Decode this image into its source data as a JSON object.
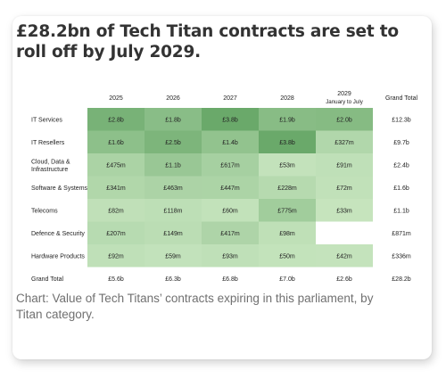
{
  "title": "£28.2bn of Tech Titan contracts are set to roll off by July 2029.",
  "caption": "Chart: Value of Tech Titans’ contracts expiring in this parliament, by Titan category.",
  "colors": {
    "low": "#cfeac6",
    "high": "#6aa96a",
    "text": "#222222"
  },
  "chart_data": {
    "type": "heatmap",
    "title": "£28.2bn of Tech Titan contracts are set to roll off by July 2029.",
    "columns": [
      "2025",
      "2026",
      "2027",
      "2028",
      "2029"
    ],
    "column_subtitles": [
      "",
      "",
      "",
      "",
      "January to July"
    ],
    "total_header": "Grand Total",
    "rows": [
      {
        "label": "IT Services",
        "values": [
          2.8,
          1.8,
          3.8,
          1.9,
          2.0
        ],
        "labels": [
          "£2.8b",
          "£1.8b",
          "£3.8b",
          "£1.9b",
          "£2.0b"
        ],
        "total": "£12.3b"
      },
      {
        "label": "IT Resellers",
        "values": [
          1.6,
          2.5,
          1.4,
          3.8,
          0.327
        ],
        "labels": [
          "£1.6b",
          "£2.5b",
          "£1.4b",
          "£3.8b",
          "£327m"
        ],
        "total": "£9.7b"
      },
      {
        "label": "Cloud, Data & Infrastructure",
        "values": [
          0.475,
          1.1,
          0.617,
          0.053,
          0.091
        ],
        "labels": [
          "£475m",
          "£1.1b",
          "£617m",
          "£53m",
          "£91m"
        ],
        "total": "£2.4b"
      },
      {
        "label": "Software & Systems",
        "values": [
          0.341,
          0.463,
          0.447,
          0.228,
          0.072
        ],
        "labels": [
          "£341m",
          "£463m",
          "£447m",
          "£228m",
          "£72m"
        ],
        "total": "£1.6b"
      },
      {
        "label": "Telecoms",
        "values": [
          0.082,
          0.118,
          0.06,
          0.775,
          0.033
        ],
        "labels": [
          "£82m",
          "£118m",
          "£60m",
          "£775m",
          "£33m"
        ],
        "total": "£1.1b"
      },
      {
        "label": "Defence & Security",
        "values": [
          0.207,
          0.149,
          0.417,
          0.098,
          null
        ],
        "labels": [
          "£207m",
          "£149m",
          "£417m",
          "£98m",
          ""
        ],
        "total": "£871m"
      },
      {
        "label": "Hardware Products",
        "values": [
          0.092,
          0.059,
          0.093,
          0.05,
          0.042
        ],
        "labels": [
          "£92m",
          "£59m",
          "£93m",
          "£50m",
          "£42m"
        ],
        "total": "£336m"
      }
    ],
    "grand_total_row": {
      "label": "Grand Total",
      "values": [
        "£5.6b",
        "£6.3b",
        "£6.8b",
        "£7.0b",
        "£2.6b"
      ],
      "total": "£28.2b"
    }
  }
}
